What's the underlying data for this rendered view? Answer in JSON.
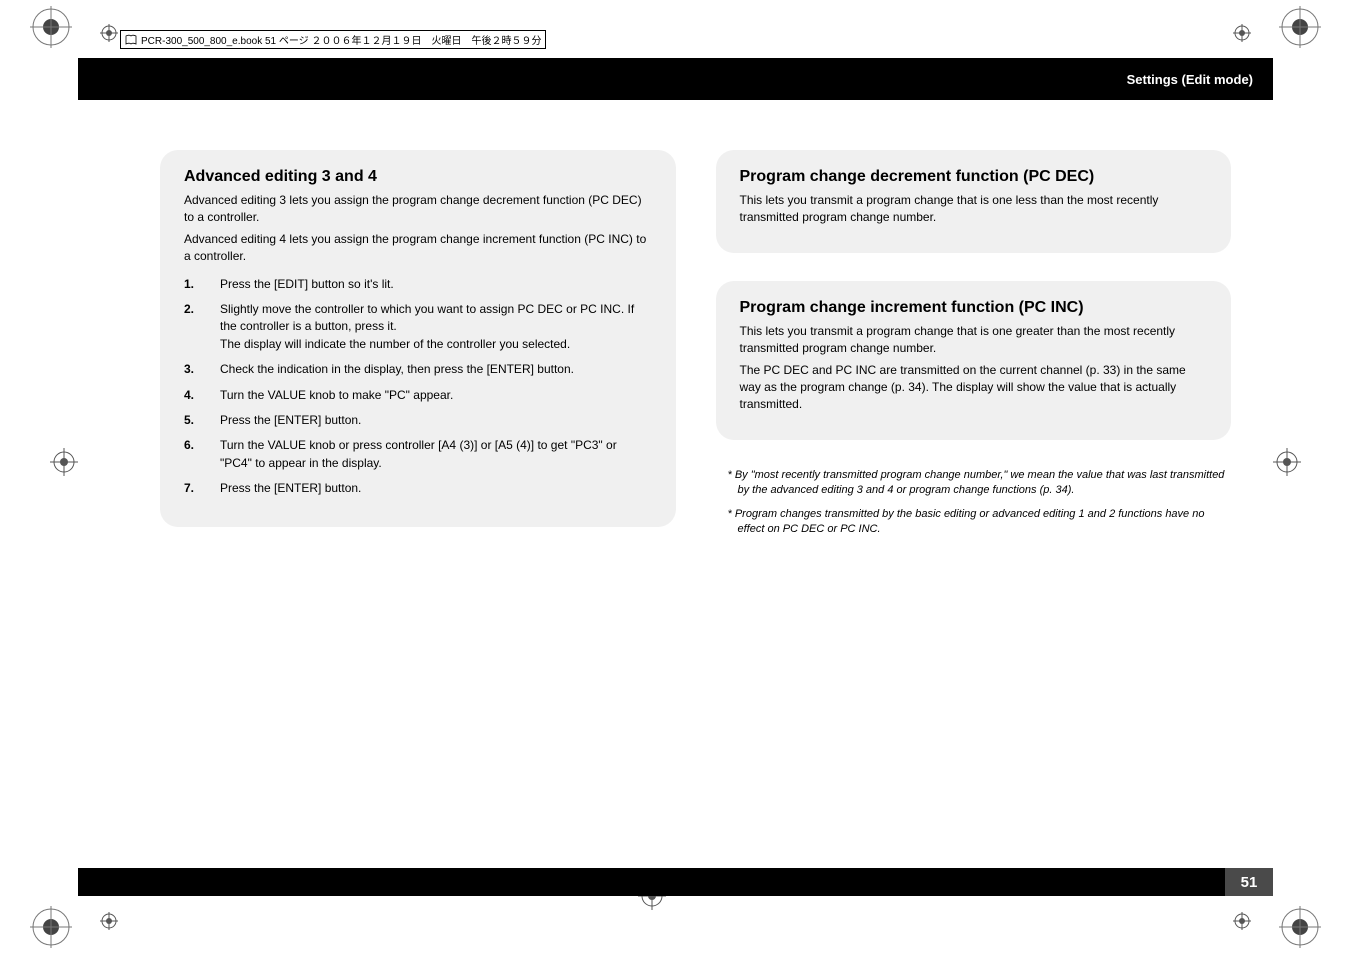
{
  "page": {
    "file_info": "PCR-300_500_800_e.book  51 ページ  ２００６年１２月１９日　火曜日　午後２時５９分",
    "header_title": "Settings (Edit mode)",
    "page_number": "51"
  },
  "left": {
    "title": "Advanced editing 3 and 4",
    "intro1": "Advanced editing 3 lets you assign the program change decrement function (PC DEC) to a controller.",
    "intro2": "Advanced editing 4 lets you assign the program change increment function (PC INC) to a controller.",
    "steps": [
      {
        "n": "1.",
        "lines": [
          "Press the [EDIT] button so it's lit."
        ]
      },
      {
        "n": "2.",
        "lines": [
          "Slightly move the controller to which you want to assign PC DEC or PC INC. If the controller is a button, press it.",
          "The display will indicate the number of the controller you selected."
        ]
      },
      {
        "n": "3.",
        "lines": [
          "Check the indication in the display, then press the [ENTER] button."
        ]
      },
      {
        "n": "4.",
        "lines": [
          "Turn the VALUE knob to make \"PC\" appear."
        ]
      },
      {
        "n": "5.",
        "lines": [
          "Press the [ENTER] button."
        ]
      },
      {
        "n": "6.",
        "lines": [
          "Turn the VALUE knob or press controller [A4 (3)] or [A5 (4)] to get \"PC3\" or \"PC4\" to appear in the display."
        ]
      },
      {
        "n": "7.",
        "lines": [
          "Press the [ENTER] button."
        ]
      }
    ]
  },
  "right": {
    "box1": {
      "title": "Program change decrement function (PC DEC)",
      "body": "This lets you transmit a program change that is one less than the most recently transmitted program change number."
    },
    "box2": {
      "title": "Program change increment function (PC INC)",
      "body1": "This lets you transmit a program change that is one greater than the most recently transmitted program change number.",
      "body2": "The PC DEC and PC INC are transmitted on the current channel (p. 33) in the same way as the program change (p. 34). The display will show the value that is actually transmitted."
    },
    "footnotes": [
      "* By \"most recently transmitted program change number,\" we mean the value that was last transmitted by the advanced editing 3 and 4 or program change functions (p. 34).",
      "* Program changes transmitted by the basic editing or advanced editing 1 and 2 functions have no effect on PC DEC or PC INC."
    ]
  },
  "style": {
    "bg": "#ffffff",
    "box_bg": "#f0f0f0",
    "header_bg": "#000000",
    "header_text": "#ffffff",
    "body_text": "#000000",
    "pagebox_bg": "#4a4a4a",
    "title_fontsize": 16,
    "body_fontsize": 12,
    "footnote_fontsize": 11
  }
}
